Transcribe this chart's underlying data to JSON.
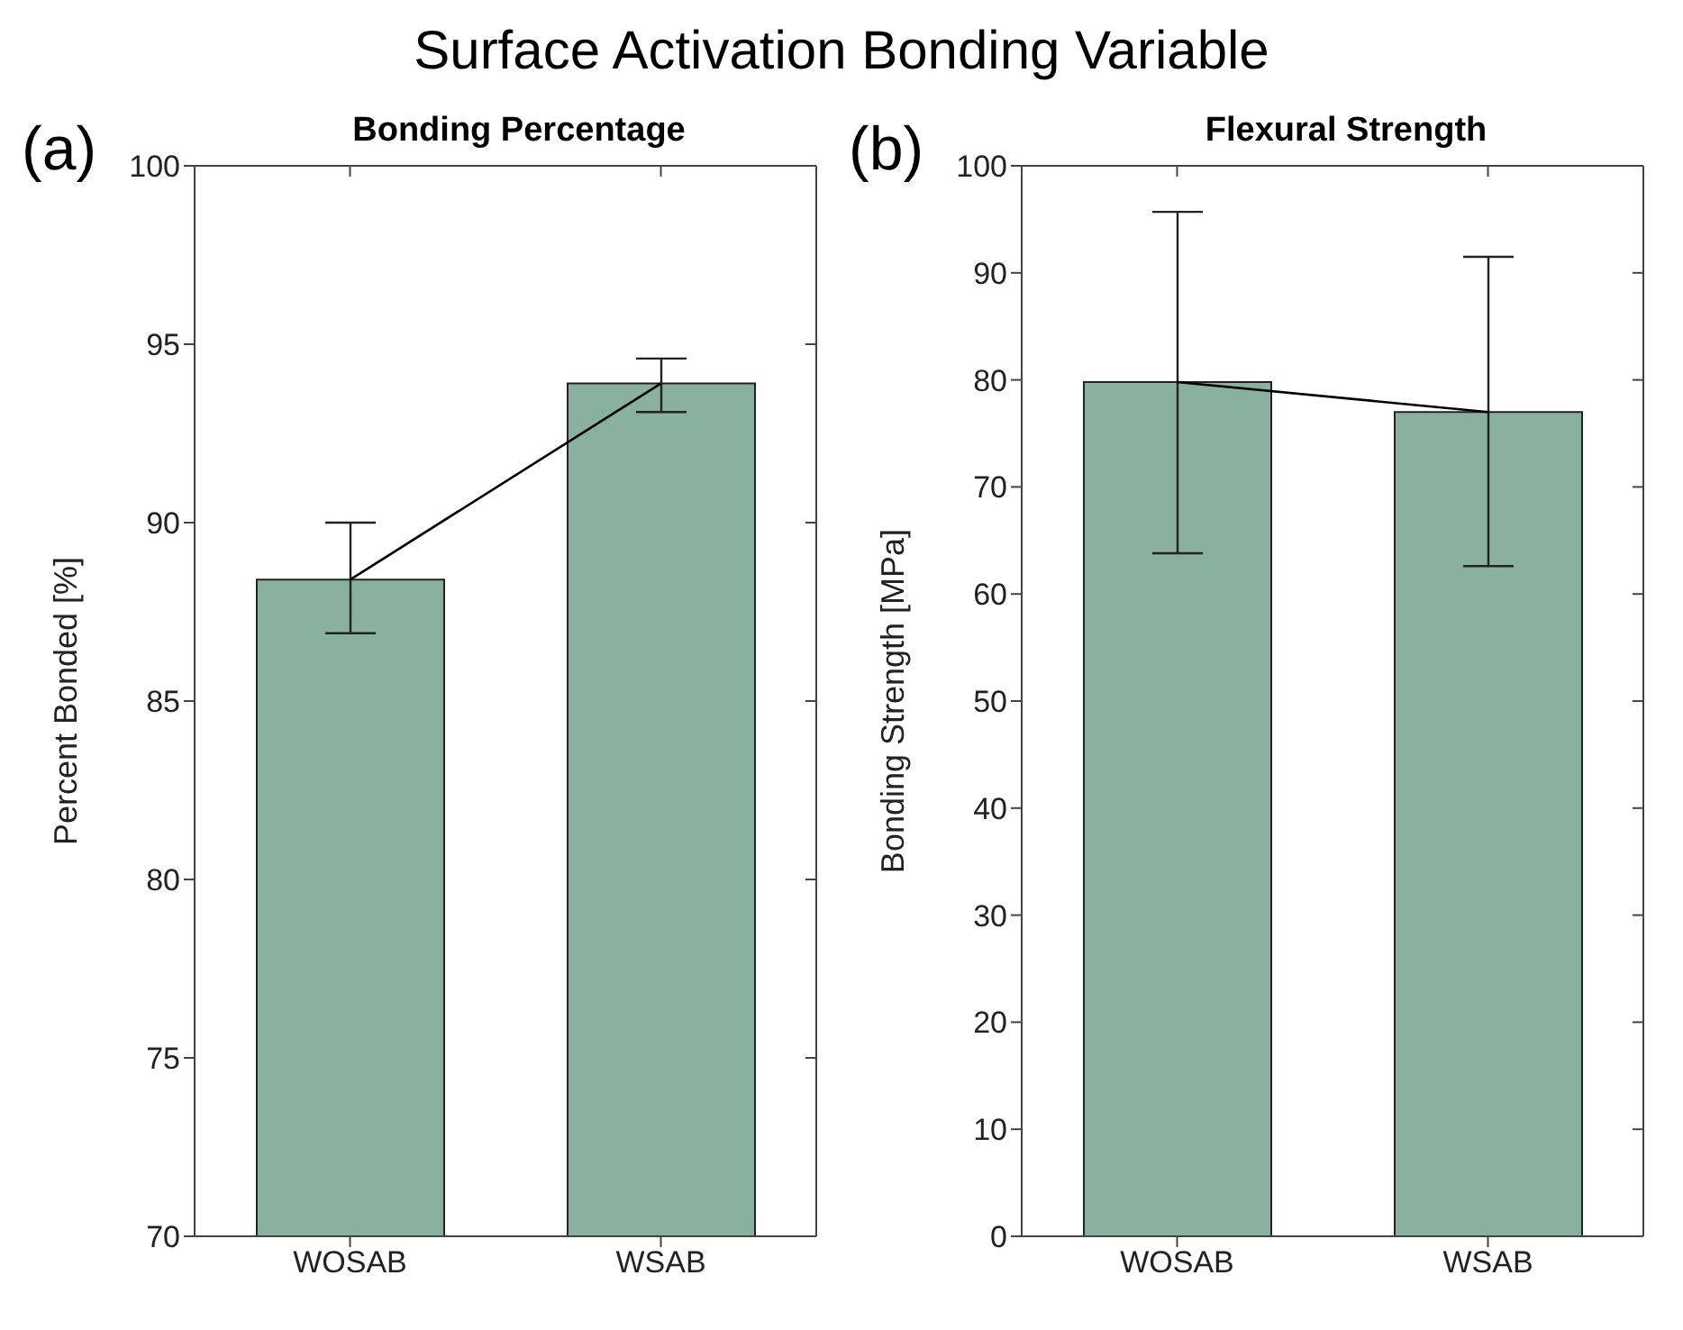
{
  "chart_data": [
    {
      "type": "bar",
      "title": "Bonding Percentage",
      "ylabel": "Percent Bonded [%]",
      "categories": [
        "WOSAB",
        "WSAB"
      ],
      "series": [
        {
          "color": "#8ab09f",
          "values": [
            88.4,
            93.9
          ],
          "errors": [
            [
              86.9,
              90.0
            ],
            [
              93.1,
              94.6
            ]
          ]
        },
        {
          "type": "line",
          "color": "#000000",
          "values": [
            88.4,
            93.9
          ]
        }
      ],
      "ylim": [
        70,
        100
      ],
      "yticks": [
        70,
        75,
        80,
        85,
        90,
        95,
        100
      ],
      "grid": false,
      "legend": false,
      "marker": "none",
      "annotations": [
        "Surface Activation Bonding Variable",
        "(a)"
      ]
    },
    {
      "type": "bar",
      "title": "Flexural Strength",
      "ylabel": "Bonding Strength [MPa]",
      "categories": [
        "WOSAB",
        "WSAB"
      ],
      "series": [
        {
          "color": "#8ab09f",
          "values": [
            79.8,
            77.0
          ],
          "errors": [
            [
              63.8,
              95.7
            ],
            [
              62.6,
              91.5
            ]
          ]
        },
        {
          "type": "line",
          "color": "#000000",
          "values": [
            79.8,
            77.0
          ]
        }
      ],
      "ylim": [
        0,
        100
      ],
      "yticks": [
        0,
        10,
        20,
        30,
        40,
        50,
        60,
        70,
        80,
        90,
        100
      ],
      "grid": false,
      "legend": false,
      "marker": "none",
      "annotations": [
        "(b)"
      ]
    }
  ]
}
